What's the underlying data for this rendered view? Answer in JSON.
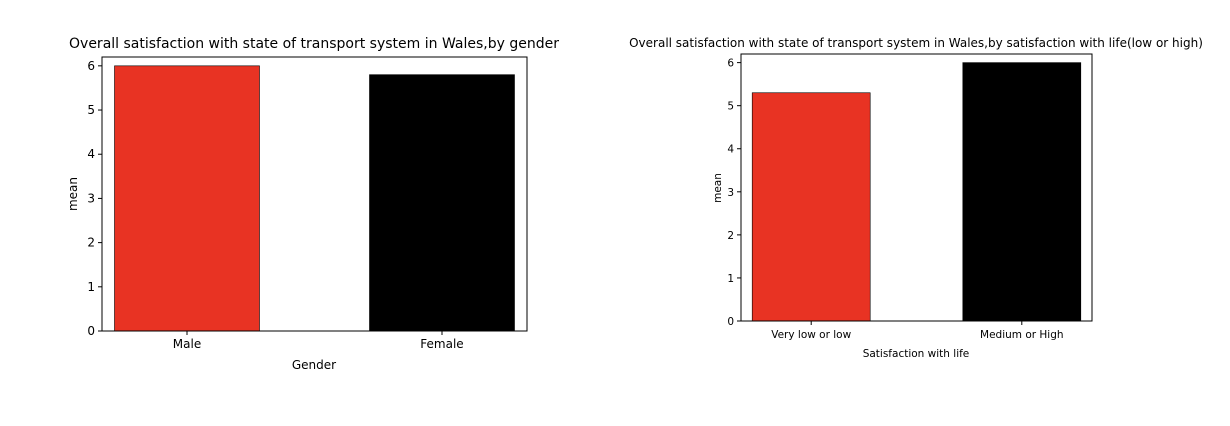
{
  "chart_data": [
    {
      "type": "bar",
      "title": "Overall satisfaction with state of transport system in Wales,by gender",
      "xlabel": "Gender",
      "ylabel": "mean",
      "categories": [
        "Male",
        "Female"
      ],
      "values": [
        6.0,
        5.8
      ],
      "colors": [
        "#e83323",
        "#000000"
      ],
      "ylim": [
        0,
        6.2
      ],
      "yticks": [
        "0",
        "1",
        "2",
        "3",
        "4",
        "5",
        "6"
      ],
      "grid": false,
      "legend": "none"
    },
    {
      "type": "bar",
      "title": "Overall satisfaction with state of transport system in Wales,by satisfaction with life(low or high)",
      "xlabel": "Satisfaction with life",
      "ylabel": "mean",
      "categories": [
        "Very low or low",
        "Medium or High"
      ],
      "values": [
        5.3,
        6.0
      ],
      "colors": [
        "#e83323",
        "#000000"
      ],
      "ylim": [
        0,
        6.2
      ],
      "yticks": [
        "0",
        "1",
        "2",
        "3",
        "4",
        "5",
        "6"
      ],
      "grid": false,
      "legend": "none"
    }
  ]
}
